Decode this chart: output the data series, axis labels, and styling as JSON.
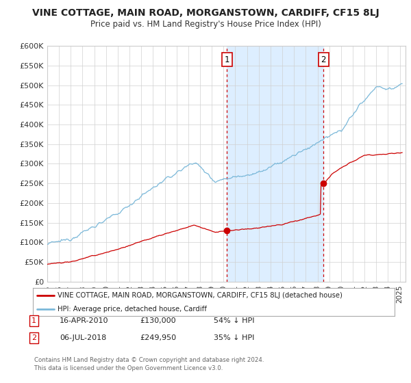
{
  "title": "VINE COTTAGE, MAIN ROAD, MORGANSTOWN, CARDIFF, CF15 8LJ",
  "subtitle": "Price paid vs. HM Land Registry's House Price Index (HPI)",
  "ylim": [
    0,
    600000
  ],
  "yticks": [
    0,
    50000,
    100000,
    150000,
    200000,
    250000,
    300000,
    350000,
    400000,
    450000,
    500000,
    550000,
    600000
  ],
  "ytick_labels": [
    "£0",
    "£50K",
    "£100K",
    "£150K",
    "£200K",
    "£250K",
    "£300K",
    "£350K",
    "£400K",
    "£450K",
    "£500K",
    "£550K",
    "£600K"
  ],
  "hpi_color": "#7ab8d9",
  "price_color": "#cc0000",
  "bg_color": "#ffffff",
  "shaded_color": "#ddeeff",
  "transaction1_date": 2010.29,
  "transaction1_price": 130000,
  "transaction2_date": 2018.51,
  "transaction2_price": 249950,
  "legend_house_label": "VINE COTTAGE, MAIN ROAD, MORGANSTOWN, CARDIFF, CF15 8LJ (detached house)",
  "legend_hpi_label": "HPI: Average price, detached house, Cardiff",
  "note1_label": "1",
  "note1_date": "16-APR-2010",
  "note1_price": "£130,000",
  "note1_hpi": "54% ↓ HPI",
  "note2_label": "2",
  "note2_date": "06-JUL-2018",
  "note2_price": "£249,950",
  "note2_hpi": "35% ↓ HPI",
  "copyright": "Contains HM Land Registry data © Crown copyright and database right 2024.\nThis data is licensed under the Open Government Licence v3.0."
}
